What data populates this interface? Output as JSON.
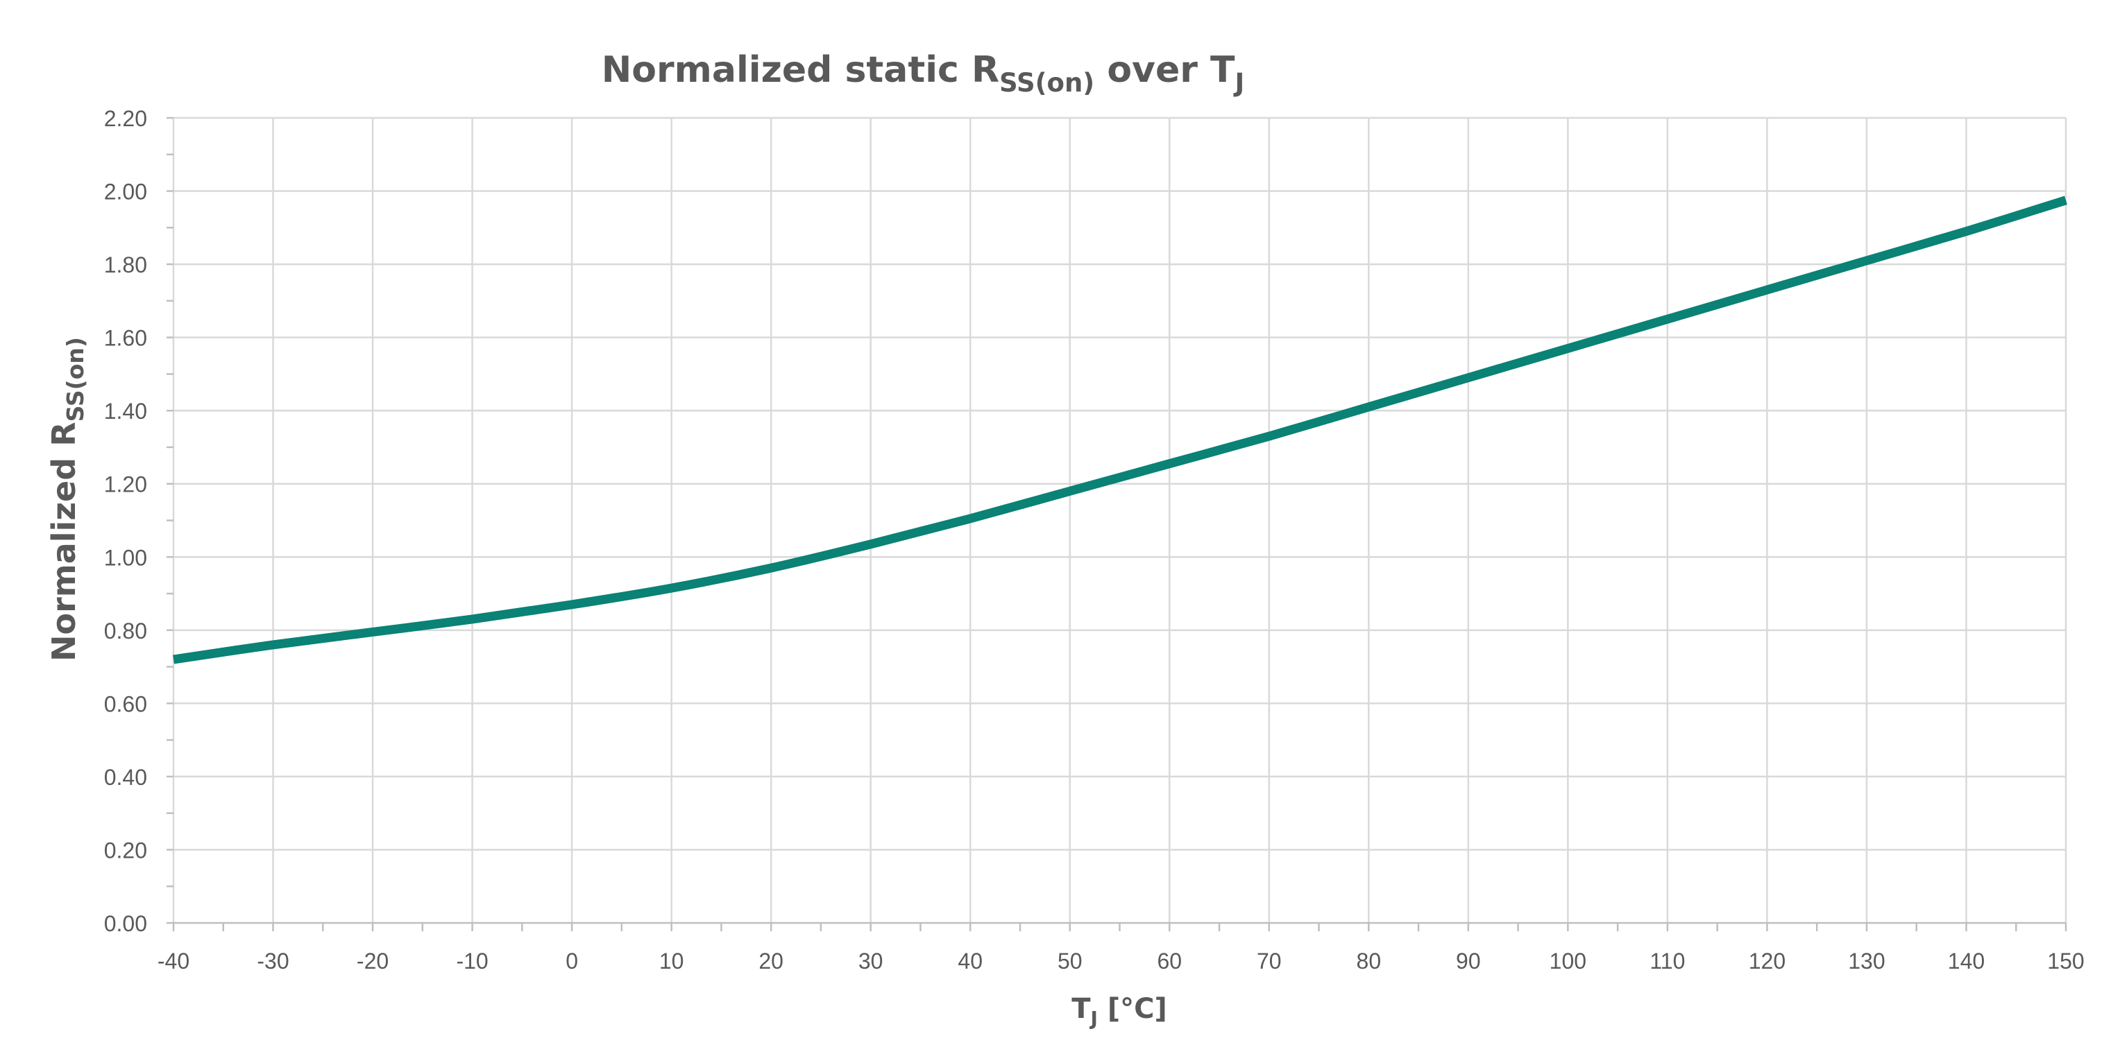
{
  "chart_data": {
    "type": "line",
    "title": {
      "main": "Normalized static R",
      "sub": "SS(on)",
      "after": " over T",
      "after_sub": "J"
    },
    "xlabel": {
      "main": "T",
      "sub": "J",
      "after": " [°C]"
    },
    "ylabel": {
      "main": "Normalized R",
      "sub": "SS(on)"
    },
    "xlim": [
      -40,
      150
    ],
    "ylim": [
      0,
      2.2
    ],
    "x_ticks": [
      -40,
      -30,
      -20,
      -10,
      0,
      10,
      20,
      30,
      40,
      50,
      60,
      70,
      80,
      90,
      100,
      110,
      120,
      130,
      140,
      150
    ],
    "x_tick_labels": [
      "-40",
      "-30",
      "-20",
      "-10",
      "0",
      "10",
      "20",
      "30",
      "40",
      "50",
      "60",
      "70",
      "80",
      "90",
      "100",
      "110",
      "120",
      "130",
      "140",
      "150"
    ],
    "y_ticks": [
      0,
      0.2,
      0.4,
      0.6,
      0.8,
      1.0,
      1.2,
      1.4,
      1.6,
      1.8,
      2.0,
      2.2
    ],
    "y_tick_labels": [
      "0.00",
      "0.20",
      "0.40",
      "0.60",
      "0.80",
      "1.00",
      "1.20",
      "1.40",
      "1.60",
      "1.80",
      "2.00",
      "2.20"
    ],
    "grid": true,
    "series": [
      {
        "name": "Normalized RSS(on)",
        "color": "#0a8275",
        "x": [
          -40,
          -30,
          -20,
          -10,
          0,
          10,
          20,
          30,
          40,
          50,
          60,
          70,
          80,
          90,
          100,
          110,
          120,
          130,
          140,
          150
        ],
        "values": [
          0.72,
          0.76,
          0.795,
          0.83,
          0.87,
          0.915,
          0.97,
          1.035,
          1.105,
          1.18,
          1.255,
          1.33,
          1.41,
          1.49,
          1.57,
          1.65,
          1.73,
          1.81,
          1.89,
          1.975
        ]
      }
    ]
  }
}
